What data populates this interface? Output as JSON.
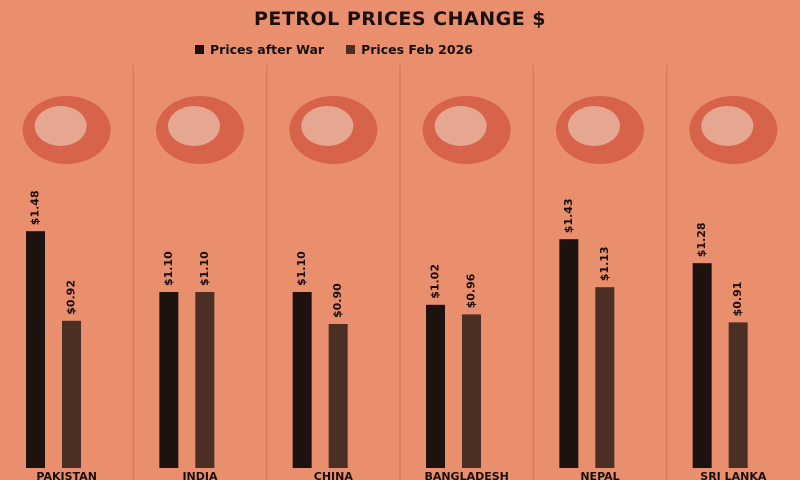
{
  "colors": {
    "background": "#ea8f6e",
    "series_after_war": "#1e120e",
    "series_feb_2026": "#4b2e24",
    "divider": "#d97b5c",
    "text": "#1b0f0b"
  },
  "chart_data": {
    "type": "bar",
    "title": "PETROL PRICES CHANGE $",
    "categories": [
      "PAKISTAN",
      "INDIA",
      "CHINA",
      "BANGLADESH",
      "NEPAL",
      "SRI LANKA"
    ],
    "category_icons": [
      "pakistan-flag-map-icon",
      "india-flag-map-icon",
      "china-flag-map-icon",
      "bangladesh-flag-map-icon",
      "nepal-flag-map-icon",
      "sri-lanka-flag-map-icon"
    ],
    "series": [
      {
        "name": "Prices after War",
        "values": [
          1.48,
          1.1,
          1.1,
          1.02,
          1.43,
          1.28
        ],
        "labels": [
          "$1.48",
          "$1.10",
          "$1.10",
          "$1.02",
          "$1.43",
          "$1.28"
        ]
      },
      {
        "name": "Prices Feb 2026",
        "values": [
          0.92,
          1.1,
          0.9,
          0.96,
          1.13,
          0.91
        ],
        "labels": [
          "$0.92",
          "$1.10",
          "$0.90",
          "$0.96",
          "$1.13",
          "$0.91"
        ]
      }
    ],
    "ylim": [
      0,
      1.6
    ],
    "legend_position": "top",
    "grid": false
  }
}
